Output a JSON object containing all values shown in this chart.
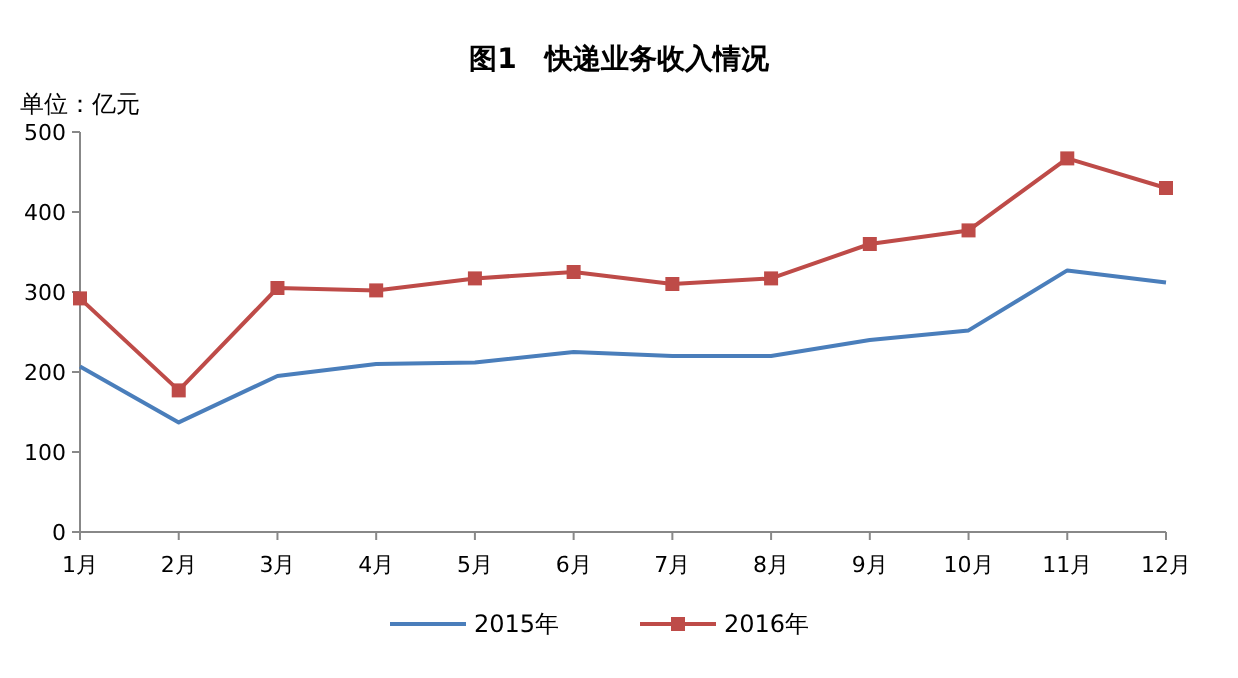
{
  "chart_data": {
    "type": "line",
    "title": "图1　快递业务收入情况",
    "ylabel": "单位：亿元",
    "categories": [
      "1月",
      "2月",
      "3月",
      "4月",
      "5月",
      "6月",
      "7月",
      "8月",
      "9月",
      "10月",
      "11月",
      "12月"
    ],
    "series": [
      {
        "name": "2015年",
        "color": "#4a7ebb",
        "marker": "none",
        "values": [
          207,
          137,
          195,
          210,
          212,
          225,
          220,
          220,
          240,
          252,
          327,
          312
        ]
      },
      {
        "name": "2016年",
        "color": "#be4b48",
        "marker": "square",
        "values": [
          292,
          177,
          305,
          302,
          317,
          325,
          310,
          317,
          360,
          377,
          467,
          430
        ]
      }
    ],
    "ylim": [
      0,
      500
    ],
    "yticks": [
      0,
      100,
      200,
      300,
      400,
      500
    ],
    "legend": "bottom"
  }
}
